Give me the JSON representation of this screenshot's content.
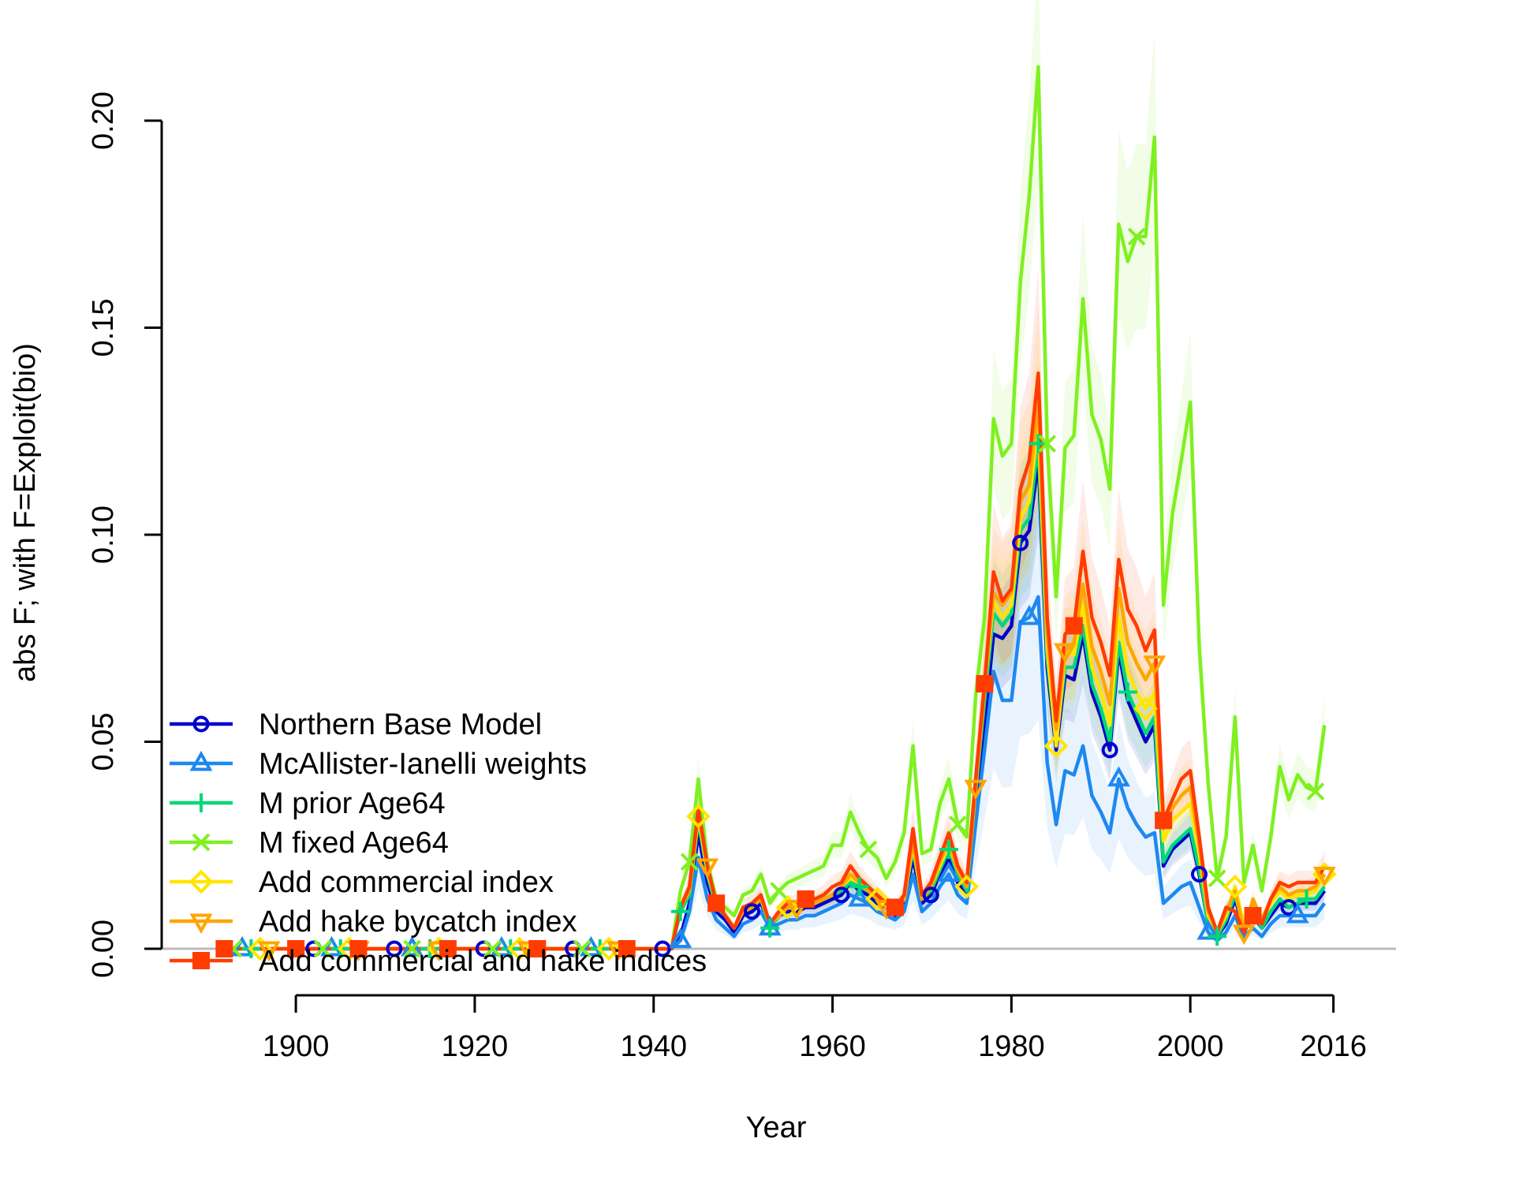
{
  "chart_data": {
    "type": "line",
    "xlabel": "Year",
    "ylabel": "abs F; with F=Exploit(bio)",
    "xlim": [
      1885,
      2023
    ],
    "ylim": [
      -0.008,
      0.212
    ],
    "x_ticks": [
      1900,
      1920,
      1940,
      1960,
      1980,
      2000,
      2016
    ],
    "x_tick_labels": [
      "1900",
      "1920",
      "1940",
      "1960",
      "1980",
      "2000",
      "2016"
    ],
    "y_ticks": [
      0.0,
      0.05,
      0.1,
      0.15,
      0.2
    ],
    "y_tick_labels": [
      "0.00",
      "0.05",
      "0.10",
      "0.15",
      "0.20"
    ],
    "x": [
      1943,
      1944,
      1945,
      1946,
      1947,
      1948,
      1949,
      1950,
      1951,
      1952,
      1953,
      1954,
      1955,
      1956,
      1957,
      1958,
      1959,
      1960,
      1961,
      1962,
      1963,
      1964,
      1965,
      1966,
      1967,
      1968,
      1969,
      1970,
      1971,
      1972,
      1973,
      1974,
      1975,
      1976,
      1977,
      1978,
      1979,
      1980,
      1981,
      1982,
      1983,
      1984,
      1985,
      1986,
      1987,
      1988,
      1989,
      1990,
      1991,
      1992,
      1993,
      1994,
      1995,
      1996,
      1997,
      1998,
      1999,
      2000,
      2001,
      2002,
      2003,
      2004,
      2005,
      2006,
      2007,
      2008,
      2009,
      2010,
      2011,
      2012,
      2013,
      2014,
      2015
    ],
    "pre_fishery_years": [
      1892,
      2015
    ],
    "series": [
      {
        "name": "Northern Base Model",
        "color": "#0000cc",
        "marker": "circle",
        "values": [
          0.003,
          0.011,
          0.028,
          0.016,
          0.009,
          0.007,
          0.004,
          0.008,
          0.009,
          0.011,
          0.006,
          0.008,
          0.009,
          0.009,
          0.01,
          0.01,
          0.011,
          0.012,
          0.013,
          0.016,
          0.014,
          0.013,
          0.011,
          0.01,
          0.008,
          0.011,
          0.022,
          0.011,
          0.013,
          0.018,
          0.022,
          0.016,
          0.013,
          0.036,
          0.054,
          0.076,
          0.075,
          0.078,
          0.098,
          0.101,
          0.118,
          0.068,
          0.048,
          0.066,
          0.065,
          0.076,
          0.062,
          0.056,
          0.048,
          0.072,
          0.06,
          0.055,
          0.05,
          0.054,
          0.02,
          0.024,
          0.026,
          0.028,
          0.018,
          0.006,
          0.003,
          0.006,
          0.012,
          0.005,
          0.008,
          0.005,
          0.008,
          0.011,
          0.01,
          0.011,
          0.011,
          0.011,
          0.014
        ],
        "uncertainty": 0.16,
        "marker_years": [
          1892,
          1902,
          1911,
          1921,
          1931,
          1941,
          1951,
          1961,
          1971,
          1981,
          1991,
          2001,
          2011
        ]
      },
      {
        "name": "McAllister-Ianelli weights",
        "color": "#1e88f0",
        "marker": "triangle-up",
        "values": [
          0.002,
          0.009,
          0.022,
          0.012,
          0.007,
          0.005,
          0.003,
          0.006,
          0.007,
          0.009,
          0.005,
          0.006,
          0.007,
          0.007,
          0.008,
          0.008,
          0.009,
          0.01,
          0.011,
          0.013,
          0.012,
          0.011,
          0.009,
          0.008,
          0.007,
          0.009,
          0.018,
          0.009,
          0.011,
          0.015,
          0.018,
          0.013,
          0.011,
          0.03,
          0.048,
          0.067,
          0.06,
          0.06,
          0.079,
          0.08,
          0.085,
          0.045,
          0.03,
          0.043,
          0.042,
          0.049,
          0.037,
          0.033,
          0.028,
          0.041,
          0.034,
          0.03,
          0.027,
          0.028,
          0.011,
          0.013,
          0.015,
          0.016,
          0.01,
          0.004,
          0.002,
          0.004,
          0.008,
          0.003,
          0.005,
          0.003,
          0.006,
          0.008,
          0.008,
          0.008,
          0.008,
          0.008,
          0.011
        ],
        "uncertainty": 0.35,
        "marker_years": [
          1894,
          1904,
          1913,
          1923,
          1933,
          1943,
          1953,
          1963,
          1973,
          1982,
          1992,
          2002,
          2012
        ]
      },
      {
        "name": "M prior Age64",
        "color": "#00d878",
        "marker": "plus",
        "values": [
          0.009,
          0.013,
          0.031,
          0.018,
          0.01,
          0.008,
          0.005,
          0.009,
          0.01,
          0.012,
          0.005,
          0.008,
          0.01,
          0.01,
          0.011,
          0.011,
          0.012,
          0.013,
          0.014,
          0.016,
          0.015,
          0.014,
          0.012,
          0.01,
          0.009,
          0.012,
          0.024,
          0.012,
          0.014,
          0.019,
          0.024,
          0.018,
          0.014,
          0.038,
          0.06,
          0.081,
          0.078,
          0.081,
          0.101,
          0.104,
          0.122,
          0.07,
          0.05,
          0.068,
          0.068,
          0.078,
          0.064,
          0.058,
          0.05,
          0.074,
          0.062,
          0.057,
          0.052,
          0.056,
          0.021,
          0.025,
          0.027,
          0.029,
          0.019,
          0.006,
          0.003,
          0.007,
          0.013,
          0.005,
          0.009,
          0.005,
          0.009,
          0.012,
          0.01,
          0.011,
          0.012,
          0.012,
          0.015
        ],
        "uncertainty": 0.16,
        "marker_years": [
          1895,
          1905,
          1915,
          1924,
          1934,
          1943,
          1953,
          1963,
          1973,
          1983,
          1993,
          2003,
          2013
        ]
      },
      {
        "name": "M fixed Age64",
        "color": "#7ff020",
        "marker": "cross",
        "values": [
          0.014,
          0.021,
          0.041,
          0.021,
          0.012,
          0.01,
          0.008,
          0.013,
          0.014,
          0.018,
          0.011,
          0.014,
          0.016,
          0.017,
          0.018,
          0.019,
          0.02,
          0.025,
          0.025,
          0.033,
          0.028,
          0.024,
          0.022,
          0.017,
          0.021,
          0.028,
          0.049,
          0.023,
          0.024,
          0.035,
          0.041,
          0.03,
          0.027,
          0.061,
          0.08,
          0.128,
          0.119,
          0.122,
          0.161,
          0.182,
          0.213,
          0.122,
          0.085,
          0.121,
          0.124,
          0.157,
          0.129,
          0.123,
          0.111,
          0.175,
          0.166,
          0.172,
          0.172,
          0.196,
          0.083,
          0.105,
          0.118,
          0.132,
          0.073,
          0.04,
          0.017,
          0.027,
          0.056,
          0.016,
          0.025,
          0.014,
          0.027,
          0.044,
          0.036,
          0.042,
          0.039,
          0.038,
          0.054
        ],
        "uncertainty": 0.13,
        "marker_years": [
          1893,
          1903,
          1913,
          1922,
          1932,
          1944,
          1954,
          1964,
          1974,
          1984,
          1994,
          2003,
          2014
        ]
      },
      {
        "name": "Add commercial index",
        "color": "#ffe600",
        "marker": "diamond",
        "values": [
          0.01,
          0.014,
          0.032,
          0.019,
          0.011,
          0.008,
          0.005,
          0.009,
          0.01,
          0.012,
          0.006,
          0.008,
          0.01,
          0.01,
          0.011,
          0.011,
          0.012,
          0.013,
          0.015,
          0.017,
          0.016,
          0.014,
          0.012,
          0.01,
          0.009,
          0.012,
          0.025,
          0.012,
          0.015,
          0.02,
          0.025,
          0.019,
          0.015,
          0.039,
          0.063,
          0.084,
          0.08,
          0.083,
          0.104,
          0.108,
          0.127,
          0.073,
          0.049,
          0.071,
          0.071,
          0.083,
          0.068,
          0.062,
          0.054,
          0.08,
          0.067,
          0.062,
          0.058,
          0.062,
          0.026,
          0.031,
          0.033,
          0.035,
          0.023,
          0.008,
          0.004,
          0.008,
          0.015,
          0.006,
          0.011,
          0.007,
          0.011,
          0.014,
          0.012,
          0.013,
          0.013,
          0.014,
          0.018
        ],
        "uncertainty": 0.16,
        "marker_years": [
          1896,
          1906,
          1916,
          1925,
          1935,
          1945,
          1955,
          1965,
          1975,
          1985,
          1995,
          2005,
          2015
        ]
      },
      {
        "name": "Add hake bycatch index",
        "color": "#ffa500",
        "marker": "triangle-down",
        "values": [
          0.01,
          0.014,
          0.033,
          0.02,
          0.011,
          0.008,
          0.005,
          0.009,
          0.01,
          0.012,
          0.006,
          0.008,
          0.01,
          0.01,
          0.011,
          0.011,
          0.012,
          0.013,
          0.015,
          0.018,
          0.016,
          0.014,
          0.012,
          0.01,
          0.009,
          0.012,
          0.026,
          0.012,
          0.015,
          0.021,
          0.026,
          0.019,
          0.015,
          0.039,
          0.063,
          0.086,
          0.083,
          0.086,
          0.108,
          0.112,
          0.132,
          0.076,
          0.053,
          0.072,
          0.074,
          0.088,
          0.073,
          0.067,
          0.059,
          0.087,
          0.074,
          0.069,
          0.065,
          0.069,
          0.029,
          0.034,
          0.037,
          0.039,
          0.025,
          0.009,
          0.004,
          0.009,
          0.014,
          0.004,
          0.012,
          0.007,
          0.012,
          0.015,
          0.013,
          0.014,
          0.014,
          0.015,
          0.018
        ],
        "uncertainty": 0.18,
        "marker_years": [
          1897,
          1907,
          1916,
          1926,
          1936,
          1946,
          1956,
          1966,
          1976,
          1986,
          1996,
          2006,
          2015
        ]
      },
      {
        "name": "Add commercial and hake indices",
        "color": "#ff3c00",
        "marker": "square",
        "values": [
          0.01,
          0.015,
          0.034,
          0.02,
          0.011,
          0.008,
          0.005,
          0.01,
          0.011,
          0.013,
          0.006,
          0.009,
          0.011,
          0.011,
          0.012,
          0.012,
          0.013,
          0.015,
          0.016,
          0.02,
          0.017,
          0.015,
          0.013,
          0.011,
          0.01,
          0.013,
          0.029,
          0.013,
          0.016,
          0.022,
          0.028,
          0.02,
          0.016,
          0.041,
          0.064,
          0.091,
          0.084,
          0.087,
          0.111,
          0.118,
          0.139,
          0.08,
          0.055,
          0.076,
          0.078,
          0.096,
          0.08,
          0.074,
          0.066,
          0.094,
          0.082,
          0.078,
          0.072,
          0.077,
          0.031,
          0.036,
          0.041,
          0.043,
          0.027,
          0.01,
          0.004,
          0.01,
          0.009,
          0.004,
          0.008,
          0.006,
          0.012,
          0.016,
          0.015,
          0.016,
          0.016,
          0.016,
          0.02
        ],
        "uncertainty": 0.18,
        "marker_years": [
          1892,
          1900,
          1907,
          1917,
          1927,
          1937,
          1947,
          1957,
          1967,
          1977,
          1987,
          1997,
          2007
        ]
      }
    ],
    "legend_position": "bottom-left",
    "grid": false
  }
}
